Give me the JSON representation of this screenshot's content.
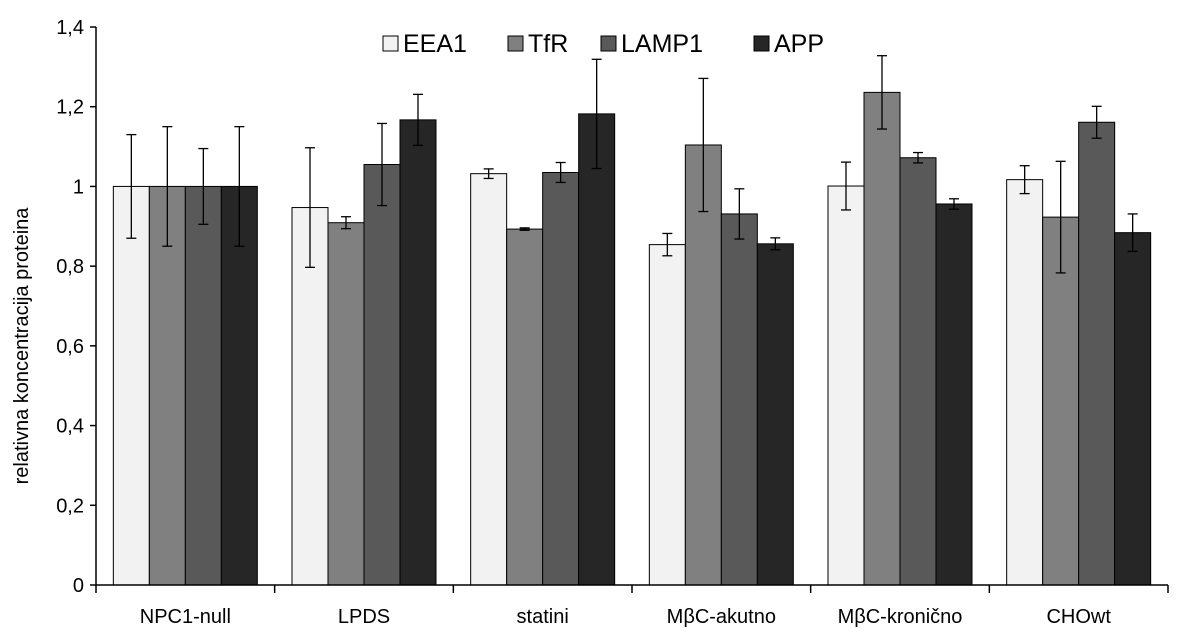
{
  "chart_data": {
    "type": "bar",
    "title": "",
    "xlabel": "",
    "ylabel": "relativna koncentracija proteina",
    "ylim": [
      0,
      1.4
    ],
    "yticks": [
      "0",
      "0,2",
      "0,4",
      "0,6",
      "0,8",
      "1",
      "1,2",
      "1,4"
    ],
    "grid": false,
    "legend_position": "top",
    "categories": [
      "NPC1-null",
      "LPDS",
      "statini",
      "MβC-akutno",
      "MβC-kronično",
      "CHOwt"
    ],
    "series": [
      {
        "name": "EEA1",
        "color": "#f2f2f2",
        "values": [
          1.0,
          0.947,
          1.032,
          0.854,
          1.001,
          1.017
        ],
        "errors": [
          0.13,
          0.15,
          0.012,
          0.028,
          0.06,
          0.035
        ]
      },
      {
        "name": "TfR",
        "color": "#808080",
        "values": [
          1.0,
          0.909,
          0.893,
          1.104,
          1.236,
          0.923
        ],
        "errors": [
          0.15,
          0.015,
          0.003,
          0.167,
          0.092,
          0.14
        ]
      },
      {
        "name": "LAMP1",
        "color": "#595959",
        "values": [
          1.0,
          1.055,
          1.035,
          0.931,
          1.072,
          1.161
        ],
        "errors": [
          0.095,
          0.103,
          0.025,
          0.063,
          0.013,
          0.04
        ]
      },
      {
        "name": "APP",
        "color": "#262626",
        "values": [
          1.0,
          1.167,
          1.182,
          0.856,
          0.956,
          0.884
        ],
        "errors": [
          0.15,
          0.064,
          0.137,
          0.015,
          0.013,
          0.047
        ]
      }
    ]
  }
}
